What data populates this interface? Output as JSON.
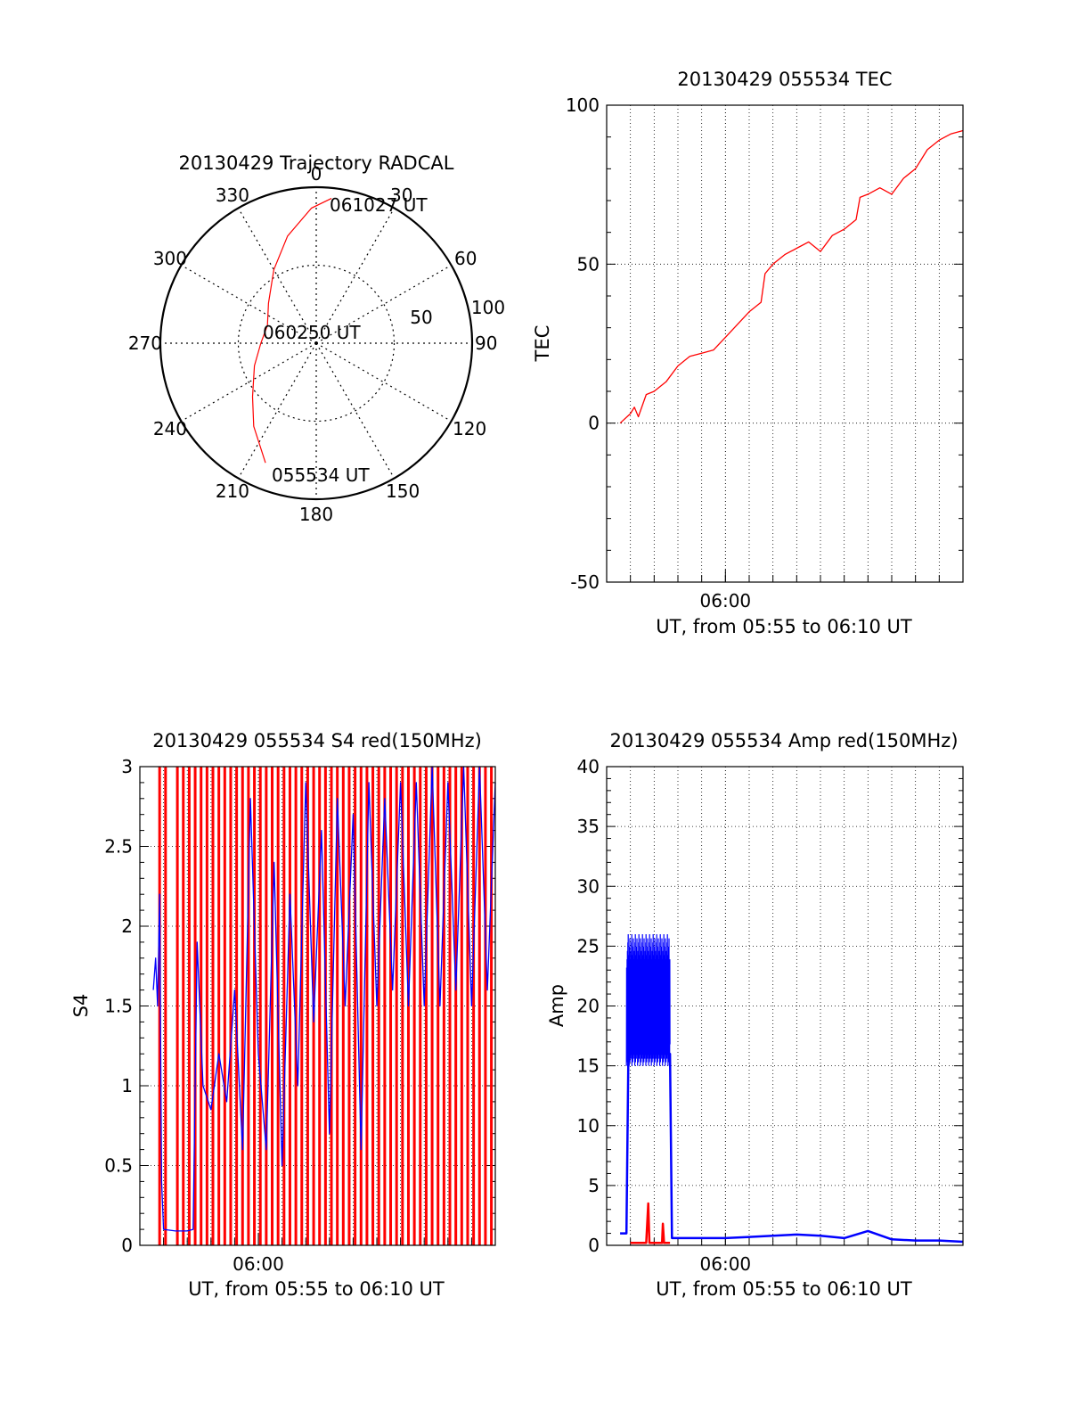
{
  "colors": {
    "red": "#ff0000",
    "blue": "#0000ff",
    "axis": "#000000",
    "grid": "#000000"
  },
  "chart_data": [
    {
      "id": "trajectory",
      "type": "polar",
      "title": "20130429 Trajectory RADCAL",
      "angle_labels": [
        "0",
        "30",
        "60",
        "90",
        "120",
        "150",
        "180",
        "210",
        "240",
        "270",
        "300",
        "330"
      ],
      "radius_labels": [
        "50",
        "100"
      ],
      "rlim": [
        0,
        90
      ],
      "grid": true,
      "track": {
        "color": "red",
        "points": [
          {
            "az": 203,
            "el": 15
          },
          {
            "az": 217,
            "el": 30
          },
          {
            "az": 230,
            "el": 42
          },
          {
            "az": 250,
            "el": 52
          },
          {
            "az": 270,
            "el": 58
          },
          {
            "az": 290,
            "el": 60
          },
          {
            "az": 310,
            "el": 54
          },
          {
            "az": 330,
            "el": 41
          },
          {
            "az": 345,
            "el": 26
          },
          {
            "az": 358,
            "el": 12
          },
          {
            "az": 6,
            "el": 6
          }
        ]
      },
      "annotations": [
        {
          "text": "055534 UT",
          "az": 203,
          "el": 15
        },
        {
          "text": "060250 UT",
          "az": 0,
          "el": 90
        },
        {
          "text": "061027 UT",
          "az": 6,
          "el": 6
        }
      ]
    },
    {
      "id": "tec",
      "type": "line",
      "title": "20130429 055534 TEC",
      "ylabel": "TEC",
      "xlabel": "UT, from 05:55 to 06:10 UT",
      "xlim": [
        "05:55:00",
        "06:10:00"
      ],
      "xticks": [
        {
          "t": "06:00:00",
          "label": "06:00"
        }
      ],
      "minor_grid_minutes": 1,
      "ylim": [
        -50,
        100
      ],
      "yticks": [
        "-50",
        "0",
        "50",
        "100"
      ],
      "grid": true,
      "series": [
        {
          "color": "red",
          "points": [
            [
              "05:55:34",
              0
            ],
            [
              "05:56:00",
              3
            ],
            [
              "05:56:10",
              5
            ],
            [
              "05:56:20",
              2
            ],
            [
              "05:56:40",
              9
            ],
            [
              "05:57:00",
              10
            ],
            [
              "05:57:30",
              13
            ],
            [
              "05:58:00",
              18
            ],
            [
              "05:58:30",
              21
            ],
            [
              "05:59:00",
              22
            ],
            [
              "05:59:30",
              23
            ],
            [
              "06:00:00",
              27
            ],
            [
              "06:00:30",
              31
            ],
            [
              "06:01:00",
              35
            ],
            [
              "06:01:30",
              38
            ],
            [
              "06:01:40",
              47
            ],
            [
              "06:02:00",
              50
            ],
            [
              "06:02:30",
              53
            ],
            [
              "06:03:00",
              55
            ],
            [
              "06:03:30",
              57
            ],
            [
              "06:04:00",
              54
            ],
            [
              "06:04:30",
              59
            ],
            [
              "06:05:00",
              61
            ],
            [
              "06:05:30",
              64
            ],
            [
              "06:05:40",
              71
            ],
            [
              "06:06:00",
              72
            ],
            [
              "06:06:30",
              74
            ],
            [
              "06:07:00",
              72
            ],
            [
              "06:07:30",
              77
            ],
            [
              "06:08:00",
              80
            ],
            [
              "06:08:30",
              86
            ],
            [
              "06:09:00",
              89
            ],
            [
              "06:09:30",
              91
            ],
            [
              "06:10:00",
              92
            ]
          ]
        }
      ]
    },
    {
      "id": "s4",
      "type": "line",
      "title": "20130429 055534 S4 red(150MHz)",
      "ylabel": "S4",
      "xlabel": "UT, from 05:55 to 06:10 UT",
      "xlim": [
        "05:55:00",
        "06:10:00"
      ],
      "xticks": [
        {
          "t": "06:00:00",
          "label": "06:00"
        }
      ],
      "minor_grid_minutes": 1,
      "ylim": [
        0,
        3
      ],
      "yticks": [
        "0",
        "0.5",
        "1",
        "1.5",
        "2",
        "2.5",
        "3"
      ],
      "grid": true,
      "red_spikes": {
        "color": "red",
        "description_times": [
          "05:55:50",
          "05:56:05",
          "05:56:35",
          "05:56:50",
          "05:57:05",
          "05:57:20",
          "05:57:35",
          "05:57:50",
          "05:58:05",
          "05:58:20",
          "05:58:35",
          "05:58:50",
          "05:59:05",
          "05:59:20",
          "05:59:35",
          "05:59:50",
          "06:00:05",
          "06:00:20",
          "06:00:35",
          "06:00:50",
          "06:01:05",
          "06:01:20",
          "06:01:35",
          "06:01:50",
          "06:02:05",
          "06:02:20",
          "06:02:35",
          "06:02:50",
          "06:03:05",
          "06:03:20",
          "06:03:35",
          "06:03:50",
          "06:04:05",
          "06:04:20",
          "06:04:35",
          "06:04:50",
          "06:05:05",
          "06:05:20",
          "06:05:35",
          "06:05:50",
          "06:06:05",
          "06:06:20",
          "06:06:35",
          "06:06:50",
          "06:07:05",
          "06:07:20",
          "06:07:35",
          "06:07:50",
          "06:08:05",
          "06:08:20",
          "06:08:35",
          "06:08:50",
          "06:09:05",
          "06:09:20",
          "06:09:35",
          "06:09:50"
        ]
      },
      "series": [
        {
          "color": "blue",
          "points": [
            [
              "05:55:34",
              1.6
            ],
            [
              "05:55:40",
              1.8
            ],
            [
              "05:55:45",
              1.5
            ],
            [
              "05:55:50",
              2.2
            ],
            [
              "05:55:55",
              0.4
            ],
            [
              "05:56:00",
              0.1
            ],
            [
              "05:56:30",
              0.09
            ],
            [
              "05:57:00",
              0.09
            ],
            [
              "05:57:15",
              0.1
            ],
            [
              "05:57:25",
              1.9
            ],
            [
              "05:57:40",
              1.0
            ],
            [
              "05:58:00",
              0.85
            ],
            [
              "05:58:20",
              1.2
            ],
            [
              "05:58:40",
              0.9
            ],
            [
              "05:59:00",
              1.6
            ],
            [
              "05:59:20",
              0.6
            ],
            [
              "05:59:40",
              2.8
            ],
            [
              "06:00:00",
              1.2
            ],
            [
              "06:00:20",
              0.6
            ],
            [
              "06:00:40",
              2.4
            ],
            [
              "06:01:00",
              0.5
            ],
            [
              "06:01:20",
              2.2
            ],
            [
              "06:01:40",
              1.0
            ],
            [
              "06:02:00",
              2.9
            ],
            [
              "06:02:20",
              1.4
            ],
            [
              "06:02:40",
              2.6
            ],
            [
              "06:03:00",
              0.7
            ],
            [
              "06:03:20",
              2.8
            ],
            [
              "06:03:40",
              1.5
            ],
            [
              "06:04:00",
              2.7
            ],
            [
              "06:04:20",
              0.6
            ],
            [
              "06:04:40",
              2.9
            ],
            [
              "06:05:00",
              1.5
            ],
            [
              "06:05:20",
              2.8
            ],
            [
              "06:05:40",
              1.6
            ],
            [
              "06:06:00",
              2.9
            ],
            [
              "06:06:20",
              1.5
            ],
            [
              "06:06:40",
              2.9
            ],
            [
              "06:07:00",
              1.5
            ],
            [
              "06:07:20",
              3.0
            ],
            [
              "06:07:40",
              1.5
            ],
            [
              "06:08:00",
              2.9
            ],
            [
              "06:08:20",
              1.6
            ],
            [
              "06:08:40",
              3.0
            ],
            [
              "06:09:00",
              1.5
            ],
            [
              "06:09:20",
              3.0
            ],
            [
              "06:09:40",
              1.6
            ],
            [
              "06:10:00",
              2.9
            ]
          ]
        }
      ]
    },
    {
      "id": "amp",
      "type": "line",
      "title": "20130429 055534 Amp red(150MHz)",
      "ylabel": "Amp",
      "xlabel": "UT, from 05:55 to 06:10 UT",
      "xlim": [
        "05:55:00",
        "06:10:00"
      ],
      "xticks": [
        {
          "t": "06:00:00",
          "label": "06:00"
        }
      ],
      "minor_grid_minutes": 1,
      "ylim": [
        0,
        40
      ],
      "yticks": [
        "0",
        "5",
        "10",
        "15",
        "20",
        "25",
        "30",
        "35",
        "40"
      ],
      "grid": true,
      "series": [
        {
          "color": "blue",
          "band": {
            "from": "05:55:50",
            "to": "05:57:40",
            "low": 15,
            "high": 26
          },
          "points": [
            [
              "05:55:34",
              1
            ],
            [
              "05:55:50",
              1
            ],
            [
              "05:55:55",
              16
            ],
            [
              "05:57:40",
              16
            ],
            [
              "05:57:45",
              0.6
            ],
            [
              "06:00:00",
              0.6
            ],
            [
              "06:01:00",
              0.7
            ],
            [
              "06:02:00",
              0.8
            ],
            [
              "06:03:00",
              0.9
            ],
            [
              "06:04:00",
              0.8
            ],
            [
              "06:05:00",
              0.6
            ],
            [
              "06:06:00",
              1.2
            ],
            [
              "06:07:00",
              0.5
            ],
            [
              "06:08:00",
              0.4
            ],
            [
              "06:09:00",
              0.4
            ],
            [
              "06:10:00",
              0.3
            ]
          ]
        },
        {
          "color": "red",
          "points": [
            [
              "05:56:00",
              0.2
            ],
            [
              "05:56:40",
              0.2
            ],
            [
              "05:56:45",
              3.5
            ],
            [
              "05:56:48",
              0.2
            ],
            [
              "05:57:20",
              0.2
            ],
            [
              "05:57:22",
              1.8
            ],
            [
              "05:57:25",
              0.2
            ],
            [
              "05:57:40",
              0.2
            ]
          ]
        }
      ]
    }
  ]
}
